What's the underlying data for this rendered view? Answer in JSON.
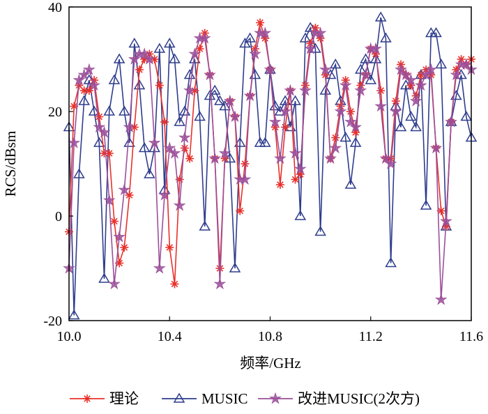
{
  "chart_data": {
    "type": "line",
    "title": "",
    "xlabel": "频率/GHz",
    "ylabel": "RCS/dBsm",
    "xlim": [
      10.0,
      11.6
    ],
    "ylim": [
      -20,
      40
    ],
    "xticks": [
      "10.0",
      "10.4",
      "10.8",
      "11.2",
      "11.6"
    ],
    "yticks": [
      "-20",
      "0",
      "20",
      "40"
    ],
    "grid": false,
    "legend_position": "bottom",
    "x": [
      10.0,
      10.02,
      10.04,
      10.06,
      10.08,
      10.1,
      10.12,
      10.14,
      10.16,
      10.18,
      10.2,
      10.22,
      10.24,
      10.26,
      10.28,
      10.3,
      10.32,
      10.34,
      10.36,
      10.38,
      10.4,
      10.42,
      10.44,
      10.46,
      10.48,
      10.5,
      10.52,
      10.54,
      10.56,
      10.58,
      10.6,
      10.62,
      10.64,
      10.66,
      10.68,
      10.7,
      10.72,
      10.74,
      10.76,
      10.78,
      10.8,
      10.82,
      10.84,
      10.86,
      10.88,
      10.9,
      10.92,
      10.94,
      10.96,
      10.98,
      11.0,
      11.02,
      11.04,
      11.06,
      11.08,
      11.1,
      11.12,
      11.14,
      11.16,
      11.18,
      11.2,
      11.22,
      11.24,
      11.26,
      11.28,
      11.3,
      11.32,
      11.34,
      11.36,
      11.38,
      11.4,
      11.42,
      11.44,
      11.46,
      11.48,
      11.5,
      11.52,
      11.54,
      11.56,
      11.58,
      11.6
    ],
    "series": [
      {
        "name": "理论",
        "color": "#e8302a",
        "marker": "asterisk",
        "values": [
          -3,
          21,
          25,
          24,
          24,
          26,
          19,
          12,
          12,
          -1,
          -9,
          -6,
          4,
          17,
          28,
          30,
          31,
          30,
          25,
          18,
          -6,
          -13,
          7,
          13,
          11,
          24,
          32,
          35,
          27,
          11,
          -10,
          11,
          22,
          19,
          1,
          10,
          23,
          32,
          37,
          34,
          28,
          17,
          6,
          17,
          24,
          7,
          8,
          25,
          33,
          36,
          34,
          27,
          11,
          15,
          21,
          26,
          20,
          16,
          25,
          27,
          32,
          31,
          24,
          11,
          11,
          22,
          29,
          27,
          25,
          23,
          27,
          28,
          27,
          13,
          1,
          -2,
          18,
          28,
          30,
          29,
          30
        ]
      },
      {
        "name": "MUSIC",
        "color": "#2e3c8c",
        "marker": "triangle",
        "values": [
          17,
          -19,
          8,
          22,
          26,
          20,
          14,
          -12,
          20,
          26,
          30,
          20,
          14,
          33,
          25,
          13,
          8,
          13,
          32,
          5,
          33,
          30,
          18,
          20,
          27,
          30,
          19,
          -2,
          23,
          24,
          22,
          21,
          11,
          -10,
          14,
          33,
          34,
          27,
          14,
          14,
          28,
          21,
          20,
          22,
          17,
          22,
          0,
          34,
          36,
          32,
          -3,
          24,
          27,
          29,
          22,
          15,
          6,
          14,
          28,
          30,
          26,
          30,
          38,
          34,
          -9,
          21,
          17,
          25,
          19,
          17,
          27,
          2,
          35,
          35,
          29,
          -2,
          18,
          23,
          27,
          19,
          15
        ]
      },
      {
        "name": "改进MUSIC(2次方)",
        "color": "#9b4f9a",
        "marker": "star",
        "values": [
          -10,
          14,
          26,
          27,
          28,
          25,
          17,
          16,
          3,
          -13,
          -4,
          5,
          17,
          30,
          31,
          31,
          30,
          14,
          -10,
          4,
          13,
          12,
          2,
          15,
          24,
          31,
          34,
          34,
          27,
          11,
          -13,
          12,
          22,
          19,
          7,
          7,
          23,
          31,
          35,
          35,
          28,
          18,
          11,
          20,
          24,
          12,
          9,
          24,
          32,
          35,
          35,
          28,
          11,
          13,
          20,
          25,
          18,
          17,
          24,
          27,
          32,
          32,
          21,
          11,
          10,
          20,
          28,
          27,
          26,
          22,
          25,
          27,
          28,
          13,
          -16,
          -1,
          18,
          27,
          29,
          29,
          28
        ]
      }
    ]
  }
}
